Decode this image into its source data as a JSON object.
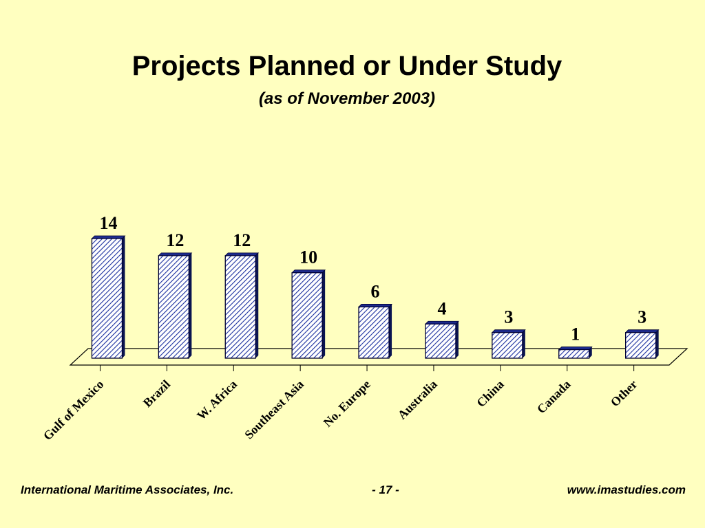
{
  "slide": {
    "title": "Projects Planned or Under Study",
    "subtitle": "(as of November 2003)"
  },
  "footer": {
    "left": "International Maritime Associates, Inc.",
    "center": "- 17 -",
    "right": "www.imastudies.com"
  },
  "chart_data": {
    "type": "bar",
    "categories": [
      "Gulf of Mexico",
      "Brazil",
      "W. Africa",
      "Southeast Asia",
      "No. Europe",
      "Australia",
      "China",
      "Canada",
      "Other"
    ],
    "values": [
      14,
      12,
      12,
      10,
      6,
      4,
      3,
      1,
      3
    ],
    "data_labels": [
      "14",
      "12",
      "12",
      "10",
      "6",
      "4",
      "3",
      "1",
      "3"
    ],
    "title": "",
    "xlabel": "",
    "ylabel": "",
    "ylim": [
      0,
      14
    ],
    "grid": false,
    "legend": "none",
    "bar_pattern": "diagonal-hatch",
    "colors": {
      "background": "#FFFFC0",
      "bar_fill": "#FFFFFF",
      "bar_hatch": "#1A2F9E",
      "bar_edge": "#000033",
      "bar_side": "#0A1450",
      "bar_top": "#1C2A8C"
    }
  }
}
